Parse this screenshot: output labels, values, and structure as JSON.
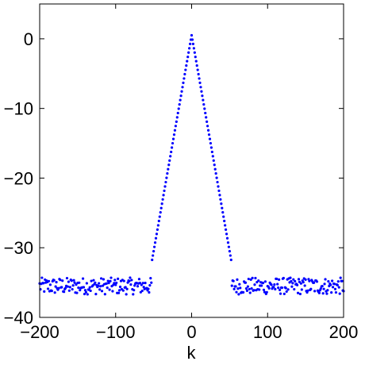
{
  "chart_data": {
    "type": "scatter",
    "title": "",
    "xlabel": "k",
    "ylabel": "",
    "xlim": [
      -200,
      200
    ],
    "ylim": [
      -40,
      5
    ],
    "xticks": [
      -200,
      -100,
      0,
      100,
      200
    ],
    "yticks": [
      0,
      -10,
      -20,
      -30,
      -40
    ],
    "xtick_labels": [
      "−200",
      "−100",
      "0",
      "100",
      "200"
    ],
    "ytick_labels": [
      "0",
      "−10",
      "−20",
      "−30",
      "−40"
    ],
    "grid": false,
    "legend": "none",
    "marker_color": "#0000ff",
    "series": [
      {
        "x_range": [
          -200,
          200
        ],
        "x_step": 1,
        "description_values": {
          "peak_at_k0": 0.5,
          "slope_per_unit_k_inside_abs_k_le_52": -0.62,
          "noise_floor_mean": -35.5,
          "noise_floor_spread": 1.2,
          "core_abs_k_limit": 52
        }
      }
    ]
  }
}
